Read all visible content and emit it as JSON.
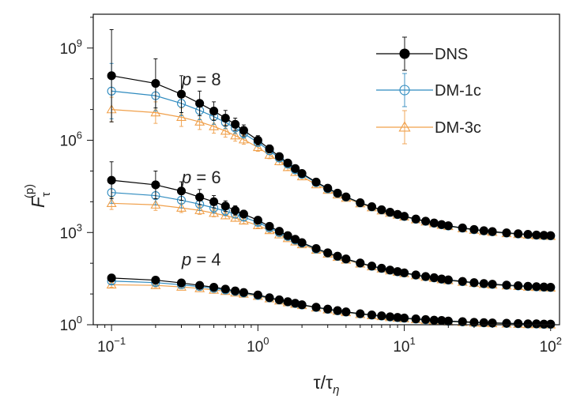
{
  "chart_data": {
    "type": "line",
    "xscale": "log",
    "yscale": "log",
    "xlim": [
      0.075,
      115
    ],
    "ylim_exp": [
      0,
      10.1
    ],
    "x_ticks": [
      {
        "value": 0.1,
        "base": "10",
        "exp": "−1"
      },
      {
        "value": 1,
        "base": "10",
        "exp": "0"
      },
      {
        "value": 10,
        "base": "10",
        "exp": "1"
      },
      {
        "value": 100,
        "base": "10",
        "exp": "2"
      }
    ],
    "y_ticks": [
      {
        "exp_value": 0,
        "base": "10",
        "exp": "0"
      },
      {
        "exp_value": 3,
        "base": "10",
        "exp": "3"
      },
      {
        "exp_value": 6,
        "base": "10",
        "exp": "6"
      },
      {
        "exp_value": 9,
        "base": "10",
        "exp": "9"
      }
    ],
    "xlabel": {
      "tau": "τ",
      "slash": "/",
      "tau2": "τ",
      "sub": "η"
    },
    "ylabel": {
      "F": "F",
      "sub": "τ",
      "sup": "(p)"
    },
    "annotations": [
      {
        "id": "p8",
        "var": "p",
        "rest": " = 8"
      },
      {
        "id": "p6",
        "var": "p",
        "rest": " = 6"
      },
      {
        "id": "p4",
        "var": "p",
        "rest": " = 4"
      }
    ],
    "x": [
      0.1,
      0.2,
      0.3,
      0.4,
      0.5,
      0.6,
      0.7,
      0.8,
      1.0,
      1.2,
      1.4,
      1.6,
      1.8,
      2.0,
      2.5,
      3.0,
      3.5,
      4.0,
      5.0,
      6.0,
      7.0,
      8.0,
      9.0,
      10,
      12,
      14,
      16,
      18,
      20,
      25,
      30,
      35,
      40,
      50,
      60,
      70,
      80,
      90,
      100
    ],
    "series": [
      {
        "name": "DNS",
        "marker": "filled-circle",
        "color": "#000000",
        "curves": [
          {
            "p": 8,
            "log10": [
              8.1,
              7.85,
              7.5,
              7.2,
              6.95,
              6.72,
              6.52,
              6.32,
              6.0,
              5.72,
              5.47,
              5.26,
              5.08,
              4.92,
              4.64,
              4.44,
              4.28,
              4.16,
              3.97,
              3.84,
              3.74,
              3.66,
              3.59,
              3.53,
              3.44,
              3.37,
              3.31,
              3.26,
              3.22,
              3.15,
              3.1,
              3.06,
              3.03,
              2.99,
              2.96,
              2.94,
              2.92,
              2.91,
              2.9
            ],
            "err": [
              1.5,
              0.8,
              0.6,
              0.4,
              0.3,
              0.25,
              0.2,
              0.18,
              0.15,
              0.13,
              0.12,
              0.11,
              0.1,
              0.1,
              0.1,
              0.1,
              0.1,
              0.1,
              0.1,
              0.09,
              0.09,
              0.08,
              0.08,
              0.08,
              0.08,
              0.07,
              0.07,
              0.07,
              0.07,
              0.06,
              0.06,
              0.06,
              0.06,
              0.05,
              0.05,
              0.05,
              0.05,
              0.05,
              0.05
            ]
          },
          {
            "p": 6,
            "log10": [
              4.7,
              4.55,
              4.35,
              4.15,
              4.0,
              3.86,
              3.72,
              3.6,
              3.4,
              3.2,
              3.04,
              2.9,
              2.78,
              2.67,
              2.48,
              2.34,
              2.23,
              2.14,
              2.01,
              1.91,
              1.84,
              1.78,
              1.73,
              1.69,
              1.62,
              1.57,
              1.53,
              1.49,
              1.46,
              1.41,
              1.37,
              1.34,
              1.32,
              1.29,
              1.27,
              1.25,
              1.24,
              1.23,
              1.22
            ],
            "err": [
              0.6,
              0.45,
              0.3,
              0.25,
              0.2,
              0.17,
              0.15,
              0.12,
              0.1,
              0.09,
              0.08,
              0.08,
              0.07,
              0.07,
              0.07,
              0.06,
              0.06,
              0.06,
              0.06,
              0.05,
              0.05,
              0.05,
              0.05,
              0.05,
              0.05,
              0.04,
              0.04,
              0.04,
              0.04,
              0.04,
              0.04,
              0.04,
              0.04,
              0.04,
              0.04,
              0.04,
              0.04,
              0.04,
              0.04
            ]
          },
          {
            "p": 4,
            "log10": [
              1.52,
              1.45,
              1.36,
              1.28,
              1.22,
              1.16,
              1.1,
              1.05,
              0.97,
              0.88,
              0.81,
              0.75,
              0.7,
              0.65,
              0.57,
              0.51,
              0.46,
              0.42,
              0.36,
              0.32,
              0.29,
              0.26,
              0.24,
              0.22,
              0.19,
              0.17,
              0.15,
              0.14,
              0.12,
              0.1,
              0.08,
              0.07,
              0.06,
              0.05,
              0.04,
              0.03,
              0.03,
              0.02,
              0.02
            ],
            "err": [
              0.12,
              0.1,
              0.09,
              0.08,
              0.07,
              0.06,
              0.06,
              0.05,
              0.05,
              0.04,
              0.04,
              0.04,
              0.04,
              0.04,
              0.03,
              0.03,
              0.03,
              0.03,
              0.03,
              0.03,
              0.03,
              0.03,
              0.03,
              0.03,
              0.03,
              0.03,
              0.03,
              0.03,
              0.03,
              0.03,
              0.03,
              0.03,
              0.03,
              0.03,
              0.03,
              0.03,
              0.03,
              0.03,
              0.03
            ]
          }
        ]
      },
      {
        "name": "DM-1c",
        "marker": "open-circle",
        "color": "#2f8bbf",
        "curves": [
          {
            "p": 8,
            "log10": [
              7.6,
              7.45,
              7.2,
              6.97,
              6.77,
              6.58,
              6.4,
              6.22,
              5.93,
              5.66,
              5.42,
              5.22,
              5.04,
              4.89,
              4.62,
              4.42,
              4.27,
              4.15,
              3.96,
              3.83,
              3.73,
              3.65,
              3.58,
              3.52,
              3.43,
              3.36,
              3.3,
              3.25,
              3.21,
              3.14,
              3.09,
              3.05,
              3.02,
              2.98,
              2.95,
              2.93,
              2.91,
              2.9,
              2.89
            ],
            "err": [
              0.9,
              0.5,
              0.4,
              0.3,
              0.25,
              0.2,
              0.18,
              0.15,
              0.13,
              0.12,
              0.11,
              0.1,
              0.1,
              0.1,
              0.1,
              0.1,
              0.1,
              0.1,
              0.1,
              0.09,
              0.09,
              0.08,
              0.08,
              0.08,
              0.08,
              0.07,
              0.07,
              0.07,
              0.07,
              0.06,
              0.06,
              0.06,
              0.06,
              0.05,
              0.05,
              0.05,
              0.05,
              0.05,
              0.05
            ]
          },
          {
            "p": 6,
            "log10": [
              4.3,
              4.2,
              4.05,
              3.92,
              3.8,
              3.7,
              3.6,
              3.5,
              3.33,
              3.15,
              3.0,
              2.87,
              2.75,
              2.65,
              2.46,
              2.33,
              2.22,
              2.13,
              2.0,
              1.9,
              1.83,
              1.77,
              1.72,
              1.68,
              1.61,
              1.56,
              1.52,
              1.48,
              1.45,
              1.4,
              1.36,
              1.33,
              1.31,
              1.28,
              1.26,
              1.24,
              1.23,
              1.22,
              1.21
            ],
            "err": [
              0.35,
              0.3,
              0.25,
              0.2,
              0.17,
              0.15,
              0.13,
              0.11,
              0.1,
              0.09,
              0.08,
              0.08,
              0.07,
              0.07,
              0.07,
              0.06,
              0.06,
              0.06,
              0.06,
              0.05,
              0.05,
              0.05,
              0.05,
              0.05,
              0.05,
              0.04,
              0.04,
              0.04,
              0.04,
              0.04,
              0.04,
              0.04,
              0.04,
              0.04,
              0.04,
              0.04,
              0.04,
              0.04,
              0.04
            ]
          },
          {
            "p": 4,
            "log10": [
              1.42,
              1.37,
              1.3,
              1.24,
              1.18,
              1.13,
              1.08,
              1.03,
              0.95,
              0.87,
              0.8,
              0.74,
              0.69,
              0.64,
              0.56,
              0.5,
              0.45,
              0.41,
              0.35,
              0.31,
              0.28,
              0.25,
              0.23,
              0.21,
              0.18,
              0.16,
              0.14,
              0.13,
              0.11,
              0.09,
              0.07,
              0.06,
              0.05,
              0.04,
              0.03,
              0.02,
              0.02,
              0.01,
              0.01
            ],
            "err": [
              0.1,
              0.09,
              0.08,
              0.07,
              0.06,
              0.06,
              0.05,
              0.05,
              0.05,
              0.04,
              0.04,
              0.04,
              0.04,
              0.04,
              0.03,
              0.03,
              0.03,
              0.03,
              0.03,
              0.03,
              0.03,
              0.03,
              0.03,
              0.03,
              0.03,
              0.03,
              0.03,
              0.03,
              0.03,
              0.03,
              0.03,
              0.03,
              0.03,
              0.03,
              0.03,
              0.03,
              0.03,
              0.03,
              0.03
            ]
          }
        ]
      },
      {
        "name": "DM-3c",
        "marker": "open-triangle",
        "color": "#f0a04b",
        "curves": [
          {
            "p": 8,
            "log10": [
              7.0,
              6.9,
              6.75,
              6.6,
              6.45,
              6.3,
              6.15,
              6.02,
              5.77,
              5.52,
              5.31,
              5.12,
              4.96,
              4.82,
              4.56,
              4.38,
              4.23,
              4.12,
              3.94,
              3.81,
              3.71,
              3.63,
              3.57,
              3.51,
              3.42,
              3.35,
              3.29,
              3.24,
              3.2,
              3.13,
              3.08,
              3.04,
              3.01,
              2.97,
              2.94,
              2.92,
              2.9,
              2.89,
              2.88
            ],
            "err": [
              0.4,
              0.35,
              0.3,
              0.25,
              0.22,
              0.2,
              0.18,
              0.15,
              0.13,
              0.12,
              0.11,
              0.1,
              0.1,
              0.1,
              0.1,
              0.1,
              0.1,
              0.1,
              0.1,
              0.09,
              0.09,
              0.08,
              0.08,
              0.08,
              0.08,
              0.07,
              0.07,
              0.07,
              0.07,
              0.06,
              0.06,
              0.06,
              0.06,
              0.05,
              0.05,
              0.05,
              0.05,
              0.05,
              0.05
            ]
          },
          {
            "p": 6,
            "log10": [
              3.95,
              3.9,
              3.8,
              3.72,
              3.63,
              3.55,
              3.47,
              3.38,
              3.23,
              3.07,
              2.93,
              2.81,
              2.7,
              2.61,
              2.43,
              2.3,
              2.2,
              2.11,
              1.98,
              1.89,
              1.82,
              1.76,
              1.71,
              1.67,
              1.6,
              1.55,
              1.51,
              1.47,
              1.44,
              1.39,
              1.35,
              1.32,
              1.3,
              1.27,
              1.25,
              1.23,
              1.22,
              1.21,
              1.2
            ],
            "err": [
              0.2,
              0.18,
              0.15,
              0.13,
              0.12,
              0.1,
              0.1,
              0.09,
              0.08,
              0.08,
              0.07,
              0.07,
              0.07,
              0.06,
              0.06,
              0.06,
              0.06,
              0.06,
              0.05,
              0.05,
              0.05,
              0.05,
              0.05,
              0.05,
              0.05,
              0.04,
              0.04,
              0.04,
              0.04,
              0.04,
              0.04,
              0.04,
              0.04,
              0.04,
              0.04,
              0.04,
              0.04,
              0.04,
              0.04
            ]
          },
          {
            "p": 4,
            "log10": [
              1.3,
              1.28,
              1.23,
              1.18,
              1.13,
              1.09,
              1.04,
              1.0,
              0.93,
              0.85,
              0.78,
              0.72,
              0.67,
              0.63,
              0.55,
              0.49,
              0.44,
              0.4,
              0.34,
              0.3,
              0.27,
              0.24,
              0.22,
              0.2,
              0.17,
              0.15,
              0.13,
              0.12,
              0.1,
              0.08,
              0.06,
              0.05,
              0.04,
              0.03,
              0.02,
              0.01,
              0.01,
              0.0,
              0.0
            ],
            "err": [
              0.08,
              0.07,
              0.06,
              0.06,
              0.05,
              0.05,
              0.05,
              0.04,
              0.04,
              0.04,
              0.04,
              0.04,
              0.04,
              0.04,
              0.03,
              0.03,
              0.03,
              0.03,
              0.03,
              0.03,
              0.03,
              0.03,
              0.03,
              0.03,
              0.03,
              0.03,
              0.03,
              0.03,
              0.03,
              0.03,
              0.03,
              0.03,
              0.03,
              0.03,
              0.03,
              0.03,
              0.03,
              0.03,
              0.03
            ]
          }
        ]
      }
    ],
    "legend": {
      "position": "top-right",
      "entries": [
        "DNS",
        "DM-1c",
        "DM-3c"
      ]
    }
  }
}
